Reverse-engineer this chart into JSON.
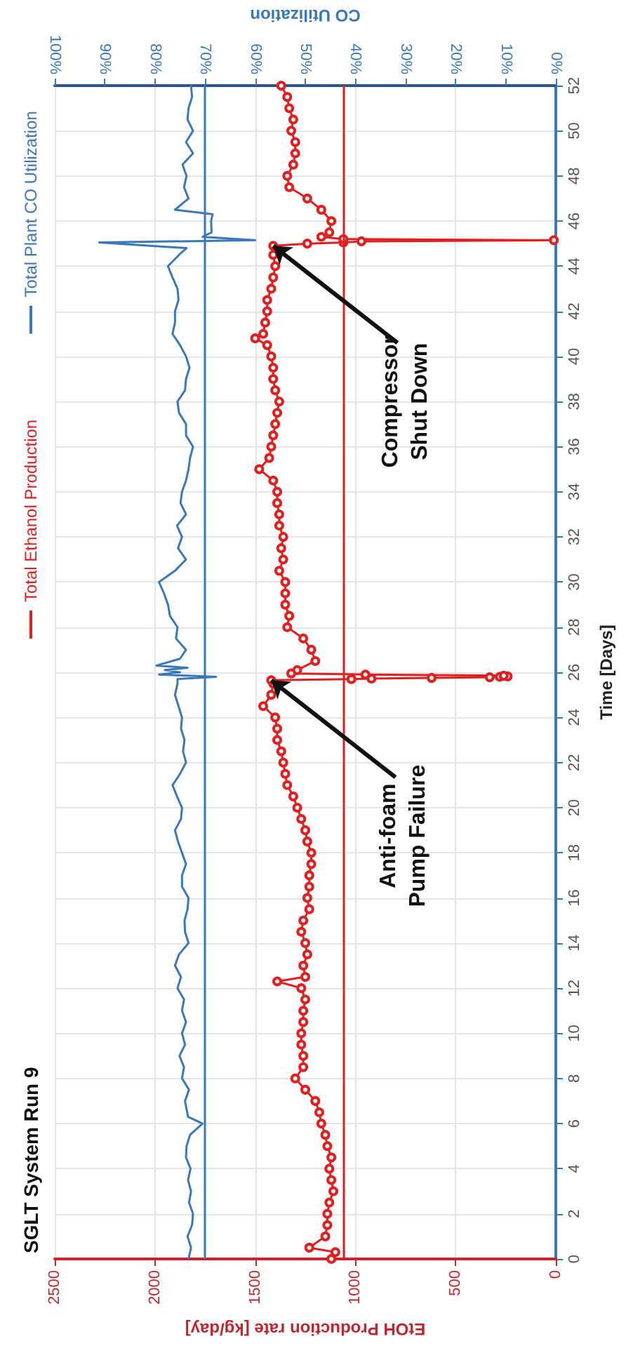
{
  "chart_data": {
    "type": "line",
    "title": "SGLT System Run 9",
    "xlabel": "EtOH Production rate [kg/day]",
    "x2label": "CO Utilization",
    "ylabel": "Time [Days]",
    "xlim": [
      2500,
      0
    ],
    "xticks": [
      0,
      500,
      1000,
      1500,
      2000,
      2500
    ],
    "x2lim": [
      100,
      0
    ],
    "x2ticks": [
      {
        "value": 0,
        "label": "0%"
      },
      {
        "value": 10,
        "label": "10%"
      },
      {
        "value": 20,
        "label": "20%"
      },
      {
        "value": 30,
        "label": "30%"
      },
      {
        "value": 40,
        "label": "40%"
      },
      {
        "value": 50,
        "label": "50%"
      },
      {
        "value": 60,
        "label": "60%"
      },
      {
        "value": 70,
        "label": "70%"
      },
      {
        "value": 80,
        "label": "80%"
      },
      {
        "value": 90,
        "label": "90%"
      },
      {
        "value": 100,
        "label": "100%"
      }
    ],
    "ylim": [
      0,
      52
    ],
    "yticks": [
      0,
      2,
      4,
      6,
      8,
      10,
      12,
      14,
      16,
      18,
      20,
      22,
      24,
      26,
      28,
      30,
      32,
      34,
      36,
      38,
      40,
      42,
      44,
      46,
      48,
      50,
      52
    ],
    "grid": true,
    "legend": "left",
    "line_style": "solid",
    "series": [
      {
        "name": "Total Ethanol Production",
        "color": "#e02020",
        "marker": "circle",
        "values": [
          0,
          0.3,
          0.5,
          1,
          1.5,
          2,
          2.5,
          3,
          3.5,
          4,
          4.5,
          5,
          5.5,
          6,
          6.5,
          7,
          7.5,
          8,
          8.5,
          9,
          9.5,
          10,
          10.5,
          11,
          11.5,
          12,
          12.3,
          12.5,
          13,
          13.5,
          14,
          14.5,
          15,
          15.5,
          16,
          16.5,
          17,
          17.5,
          18,
          18.5,
          19,
          19.5,
          20,
          20.5,
          21,
          21.5,
          22,
          22.5,
          23,
          23.5,
          24,
          24.5,
          25,
          25.5,
          25.65,
          25.7,
          25.72,
          25.75,
          25.78,
          25.8,
          25.82,
          25.85,
          25.9,
          25.95,
          26.1,
          26.5,
          27,
          27.5,
          28,
          28.5,
          29,
          29.5,
          30,
          30.5,
          31,
          31.5,
          32,
          32.5,
          33,
          33.5,
          34,
          34.5,
          35,
          35.5,
          36,
          36.5,
          37,
          37.5,
          38,
          38.5,
          39,
          39.5,
          40,
          40.5,
          40.8,
          41,
          41.5,
          42,
          42.5,
          43,
          43.5,
          44,
          44.5,
          44.9,
          45,
          45.05,
          45.1,
          45.15,
          45.2,
          45.3,
          45.5,
          46,
          46.5,
          47,
          47.5,
          48,
          48.5,
          49,
          49.5,
          50,
          50.5,
          51,
          51.5,
          52
        ],
        "x": [
          1120,
          1100,
          1230,
          1150,
          1140,
          1140,
          1130,
          1110,
          1120,
          1130,
          1120,
          1140,
          1150,
          1170,
          1180,
          1200,
          1250,
          1300,
          1260,
          1260,
          1270,
          1270,
          1260,
          1260,
          1250,
          1270,
          1390,
          1250,
          1260,
          1240,
          1250,
          1270,
          1260,
          1230,
          1240,
          1230,
          1230,
          1220,
          1220,
          1240,
          1250,
          1270,
          1290,
          1310,
          1340,
          1350,
          1360,
          1370,
          1390,
          1390,
          1400,
          1460,
          1420,
          1410,
          1420,
          1020,
          920,
          620,
          330,
          280,
          240,
          260,
          950,
          1320,
          1290,
          1200,
          1220,
          1260,
          1340,
          1330,
          1350,
          1350,
          1350,
          1380,
          1360,
          1370,
          1360,
          1380,
          1380,
          1390,
          1390,
          1410,
          1480,
          1430,
          1420,
          1410,
          1400,
          1390,
          1380,
          1400,
          1410,
          1410,
          1420,
          1440,
          1500,
          1460,
          1450,
          1440,
          1440,
          1420,
          1410,
          1400,
          1410,
          1410,
          1240,
          1060,
          970,
          10,
          1060,
          1170,
          1130,
          1120,
          1170,
          1240,
          1330,
          1340,
          1310,
          1300,
          1300,
          1320,
          1310,
          1330,
          1340,
          1370
        ]
      },
      {
        "name": "Total Plant CO Utilization",
        "color": "#3a78b8",
        "marker": "none",
        "axis": "x2",
        "values": [
          0,
          0.5,
          1,
          1.5,
          2,
          2.5,
          3,
          3.5,
          4,
          4.5,
          5,
          5.5,
          6,
          6.3,
          7,
          7.5,
          8,
          8.5,
          9,
          9.5,
          10,
          10.5,
          11,
          11.5,
          12,
          12.5,
          13,
          13.5,
          14,
          14.5,
          15,
          15.5,
          16,
          16.5,
          17,
          17.5,
          18,
          18.5,
          19,
          19.5,
          20,
          20.5,
          21,
          21.5,
          22,
          22.5,
          23,
          23.5,
          24,
          24.5,
          25,
          25.5,
          25.7,
          25.8,
          25.9,
          26,
          26.1,
          26.2,
          26.3,
          26.6,
          27,
          27.5,
          28,
          28.5,
          29,
          29.5,
          30,
          30.5,
          31,
          31.5,
          32,
          32.5,
          33,
          33.5,
          34,
          34.5,
          35,
          35.5,
          36,
          36.5,
          37,
          37.5,
          38,
          38.5,
          39,
          39.5,
          40,
          40.5,
          41,
          41.5,
          42,
          42.5,
          43,
          43.5,
          44,
          44.5,
          44.8,
          45.05,
          45.15,
          45.3,
          45.5,
          46,
          46.3,
          46.5,
          47,
          47.5,
          48,
          48.5,
          49,
          49.5,
          50,
          50.5,
          51,
          51.5,
          52
        ],
        "x": [
          73.3,
          72.8,
          73.5,
          72.6,
          72.4,
          73.2,
          72.8,
          73.4,
          72.9,
          73.8,
          73.7,
          73.0,
          70.5,
          73.4,
          74.0,
          73.2,
          74.6,
          74.2,
          75.1,
          74.0,
          74.6,
          73.8,
          74.6,
          74.2,
          75.5,
          74.8,
          76.0,
          75.2,
          73.3,
          74.0,
          74.1,
          73.5,
          73.3,
          74.6,
          74.6,
          73.8,
          74.6,
          75.4,
          76.0,
          74.8,
          74.6,
          75.6,
          76.5,
          75.0,
          73.8,
          74.4,
          74.1,
          74.8,
          74.6,
          75.3,
          76.0,
          75.5,
          75.5,
          67.8,
          79.2,
          75.0,
          78.0,
          73.5,
          79.7,
          75.0,
          73.8,
          75.8,
          75.5,
          77.0,
          77.4,
          78.2,
          79.2,
          76.0,
          73.8,
          75.4,
          74.6,
          75.6,
          73.8,
          74.9,
          74.6,
          73.8,
          73.3,
          73.0,
          72.4,
          73.8,
          73.8,
          75.2,
          75.5,
          74.0,
          73.8,
          73.1,
          73.8,
          75.0,
          76.5,
          76.0,
          76.0,
          75.3,
          75.5,
          76.5,
          77.4,
          75.2,
          73.7,
          91.1,
          60.0,
          70.5,
          68.7,
          68.8,
          68.5,
          76.0,
          73.3,
          74.2,
          73.7,
          74.5,
          72.4,
          73.8,
          72.4,
          73.5,
          73.3,
          72.6,
          72.8
        ]
      }
    ],
    "ref_lines": [
      {
        "axis": "x",
        "value": 1060,
        "color": "#e02020"
      },
      {
        "axis": "x2",
        "value": 70,
        "color": "#3a78b8"
      }
    ],
    "annotations": [
      {
        "text": "Anti-foam\nPump Failure",
        "x": 1420,
        "y": 25.65
      },
      {
        "text": "Compressor\nShut Down",
        "x": 1410,
        "y": 44.9
      }
    ]
  }
}
